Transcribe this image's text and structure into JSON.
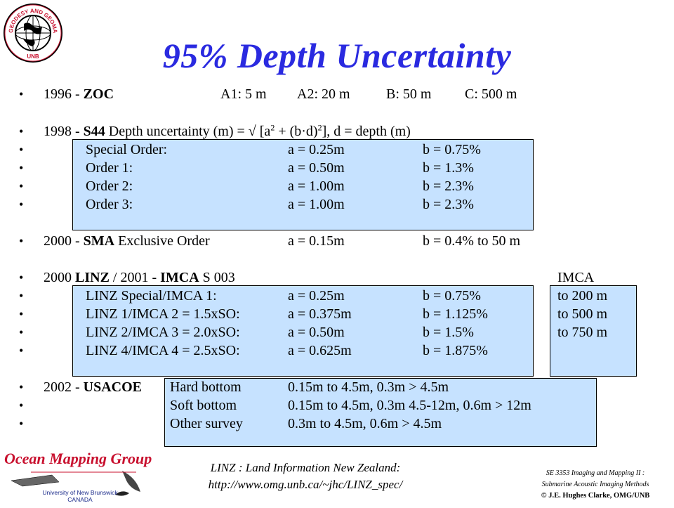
{
  "header": {
    "title": "95% Depth Uncertainty",
    "logo_ring_text": "GEODESY AND GEOMATICS ENGINEERING",
    "logo_bottom_text": "UNB"
  },
  "zoc": {
    "year": "1996 - ",
    "name": "ZOC",
    "a1": "A1:  5 m",
    "a2": "A2:  20 m",
    "b": "B:  50 m",
    "c": "C:  500 m"
  },
  "s44": {
    "year": "1998 - ",
    "name": "S44",
    "formula_lead": " Depth uncertainty (m) = √ [a",
    "formula_mid": " + (b·d)",
    "formula_tail": "],  d = depth (m)",
    "sup": "2",
    "rows": [
      {
        "label": "Special Order:",
        "a": "a = 0.25m",
        "b": "b = 0.75%"
      },
      {
        "label": "Order 1:",
        "a": "a = 0.50m",
        "b": "b = 1.3%"
      },
      {
        "label": "Order 2:",
        "a": "a = 1.00m",
        "b": "b = 2.3%"
      },
      {
        "label": "Order 3:",
        "a": "a = 1.00m",
        "b": "b = 2.3%"
      }
    ]
  },
  "sma": {
    "year": "2000 - ",
    "name": "SMA",
    "label": " Exclusive Order",
    "a": "a = 0.15m",
    "b": "b = 0.4% to 50 m"
  },
  "linz": {
    "prefix": "2000 ",
    "name1": "LINZ",
    "mid": " / 2001 - ",
    "name2": "IMCA",
    "suffix": " S 003",
    "imca_header": "IMCA",
    "rows": [
      {
        "label": "LINZ Special/IMCA 1:",
        "a": "a = 0.25m",
        "b": "b = 0.75%",
        "imca": "to 200 m"
      },
      {
        "label": "LINZ 1/IMCA 2 = 1.5xSO:",
        "a": "a = 0.375m",
        "b": "b = 1.125%",
        "imca": "to 500 m"
      },
      {
        "label": "LINZ 2/IMCA 3 = 2.0xSO:",
        "a": "a = 0.50m",
        "b": "b = 1.5%",
        "imca": "to 750 m"
      },
      {
        "label": "LINZ 4/IMCA 4 = 2.5xSO:",
        "a": "a = 0.625m",
        "b": "b = 1.875%",
        "imca": ""
      }
    ]
  },
  "usacoe": {
    "year": "2002 - ",
    "name": "USACOE",
    "rows": [
      {
        "label": "Hard bottom",
        "value": "0.15m to 4.5m, 0.3m > 4.5m"
      },
      {
        "label": "Soft bottom",
        "value": "0.15m to 4.5m, 0.3m 4.5-12m, 0.6m > 12m"
      },
      {
        "label": "Other survey",
        "value": "0.3m   to 4.5m, 0.6m > 4.5m"
      }
    ]
  },
  "bullet_glyph": "•",
  "footer": {
    "omg_name": "Ocean Mapping Group",
    "unb_line1": "University of New Brunswick",
    "unb_line2": "CANADA",
    "linz_line1": "LINZ : Land Information New Zealand:",
    "linz_line2": "http://www.omg.unb.ca/~jhc/LINZ_spec/",
    "course_line1": "SE 3353 Imaging and Mapping II :",
    "course_line2": "Submarine Acoustic Imaging Methods",
    "copyright": "© J.E. Hughes Clarke, OMG/UNB"
  },
  "colors": {
    "title": "#2a2ae0",
    "box_fill": "#c6e2ff",
    "omg_red": "#c8102e",
    "unb_blue": "#1a2a8a"
  }
}
